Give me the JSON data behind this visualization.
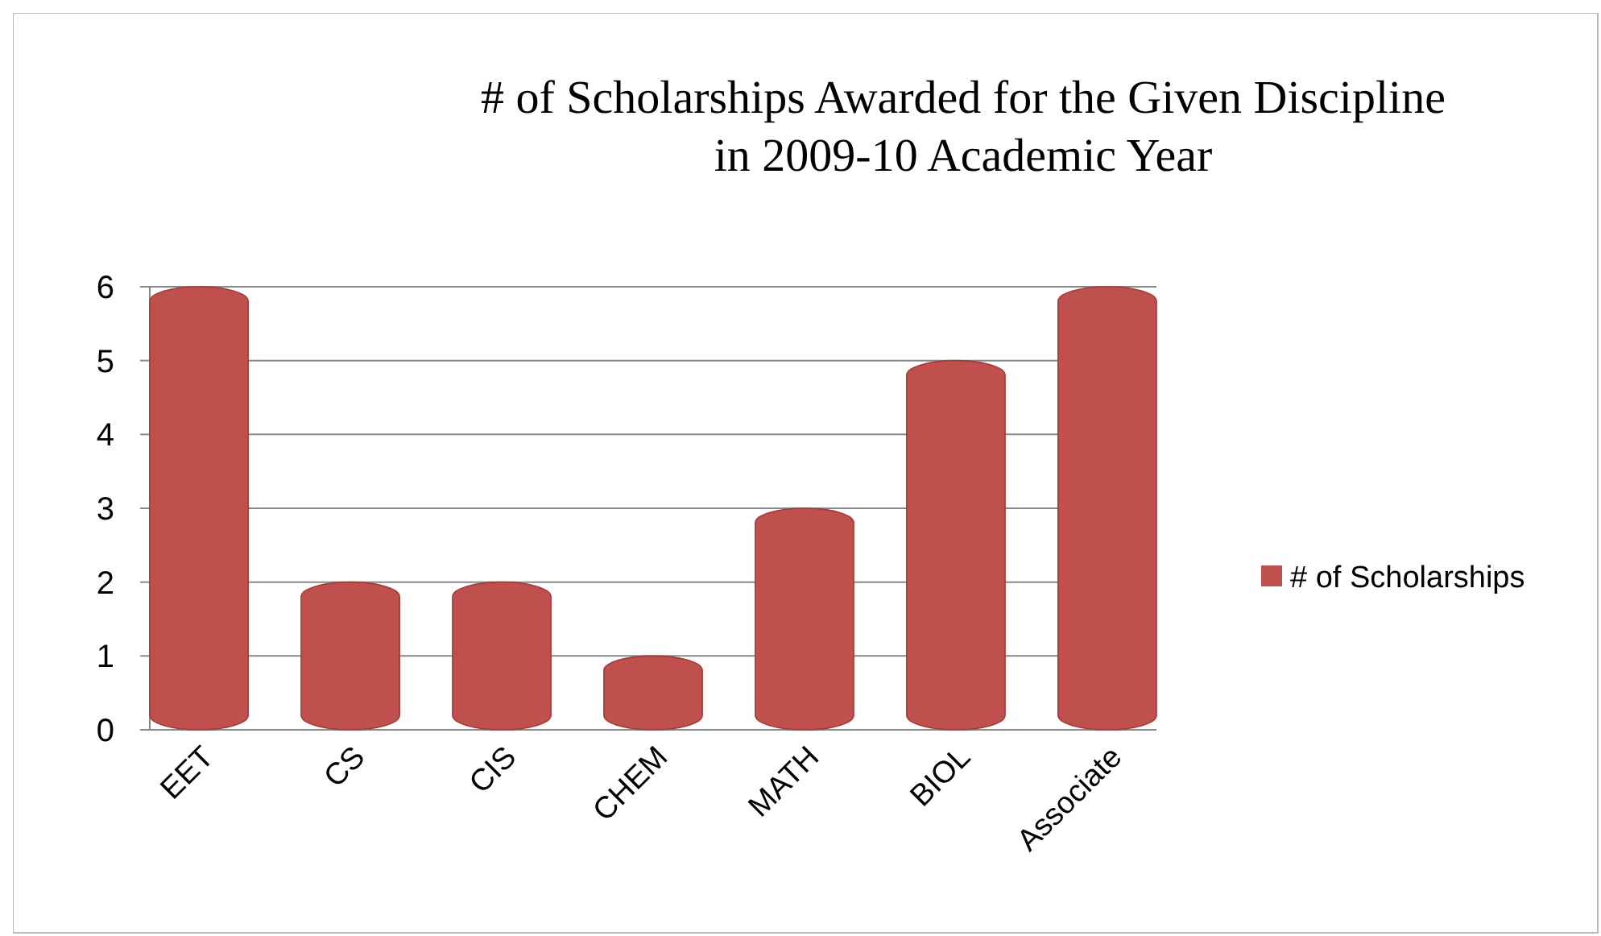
{
  "chart_data": {
    "type": "bar",
    "title": "# of Scholarships Awarded for the Given Discipline\nin 2009-10 Academic Year",
    "categories": [
      "EET",
      "CS",
      "CIS",
      "CHEM",
      "MATH",
      "BIOL",
      "Associate"
    ],
    "series": [
      {
        "name": "# of Scholarships",
        "color": "#c0504d",
        "values": [
          6,
          2,
          2,
          1,
          3,
          5,
          6
        ]
      }
    ],
    "ylim": [
      0,
      6
    ],
    "yticks": [
      0,
      1,
      2,
      3,
      4,
      5,
      6
    ],
    "grid": "y",
    "legend": "right"
  }
}
